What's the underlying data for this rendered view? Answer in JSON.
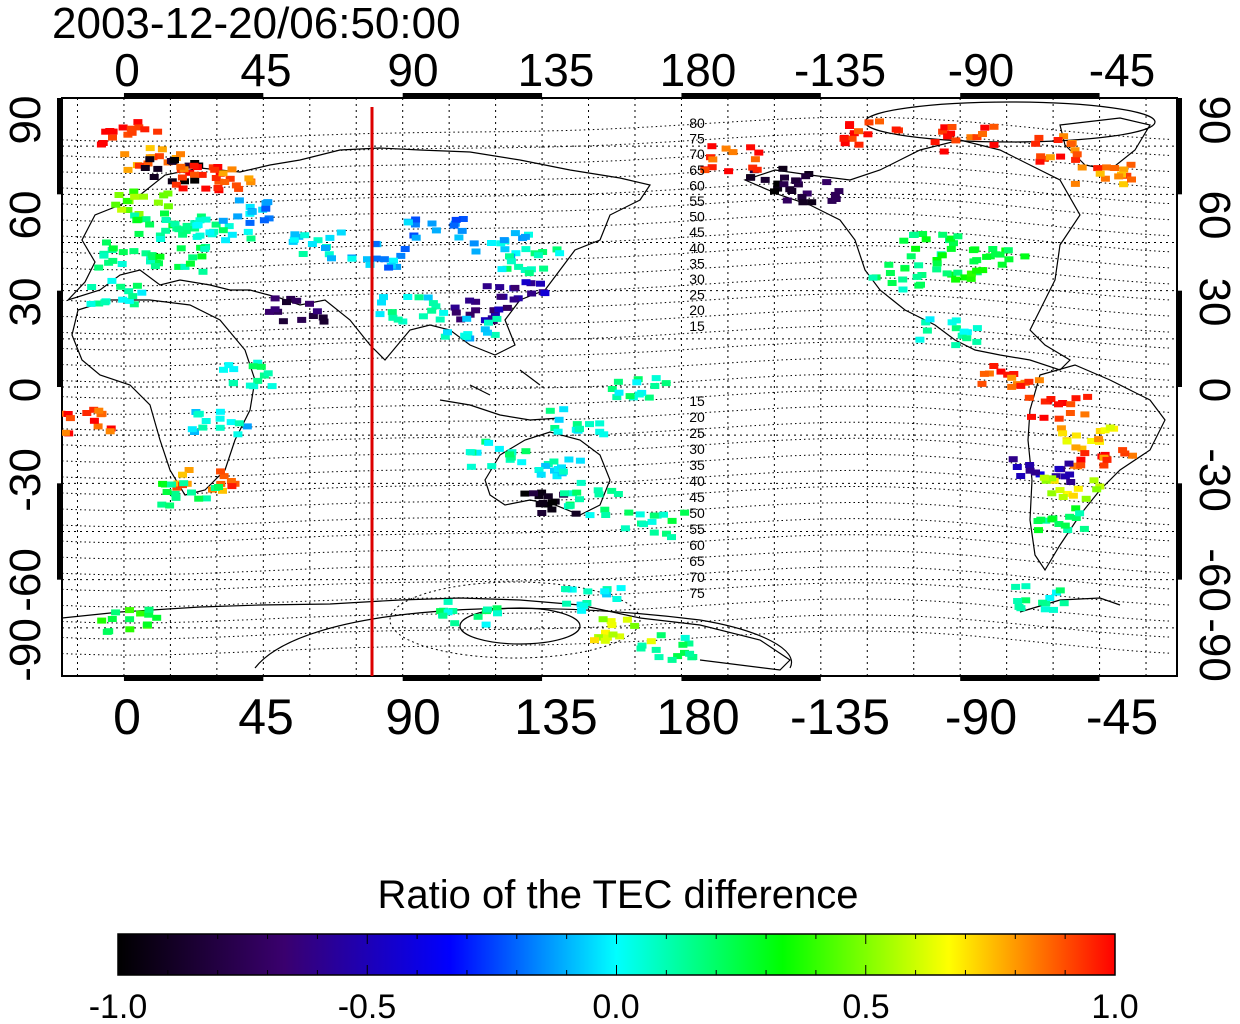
{
  "timestamp": "2003-12-20/06:50:00",
  "lon_ticks": [
    "0",
    "45",
    "90",
    "135",
    "180",
    "-135",
    "-90",
    "-45"
  ],
  "lat_ticks": [
    "90",
    "60",
    "30",
    "0",
    "-30",
    "-60",
    "-90"
  ],
  "contour_labels_north": [
    "80",
    "75",
    "70",
    "65",
    "60",
    "55",
    "50",
    "45",
    "40",
    "35",
    "30",
    "25",
    "20",
    "15"
  ],
  "contour_labels_south": [
    "15",
    "20",
    "25",
    "30",
    "35",
    "40",
    "45",
    "50",
    "55",
    "60",
    "65",
    "70",
    "75"
  ],
  "colorbar": {
    "title": "Ratio of the TEC difference",
    "ticks": [
      "-1.0",
      "-0.5",
      "0.0",
      "0.5",
      "1.0"
    ],
    "range": [
      -1.0,
      1.0
    ],
    "stops": [
      "#000000",
      "#3a006e",
      "#0000ff",
      "#00ffff",
      "#00ff00",
      "#ffff00",
      "#ff0000"
    ]
  },
  "colors": {
    "meridian_line": "#dd0000",
    "coastline": "#000000",
    "grid": "#000000"
  },
  "chart_data": {
    "type": "heatmap",
    "title": "2003-12-20/06:50:00",
    "xlabel": "",
    "ylabel": "",
    "xticks": [
      "0",
      "45",
      "90",
      "135",
      "180",
      "-135",
      "-90",
      "-45"
    ],
    "yticks": [
      "90",
      "60",
      "30",
      "0",
      "-30",
      "-60",
      "-90"
    ],
    "xlim": [
      -20,
      340
    ],
    "ylim": [
      -90,
      90
    ],
    "value_range": [
      -1.0,
      1.0
    ],
    "colorbar_label": "Ratio of the TEC difference",
    "marked_longitude": 77,
    "cells": [
      {
        "lon": 0,
        "lat": 80,
        "v": 1.0
      },
      {
        "lon": 8,
        "lat": 72,
        "v": 0.85
      },
      {
        "lon": 15,
        "lat": 68,
        "v": -0.95
      },
      {
        "lon": 25,
        "lat": 66,
        "v": 0.95
      },
      {
        "lon": 30,
        "lat": 66,
        "v": 0.9
      },
      {
        "lon": 5,
        "lat": 58,
        "v": 0.5
      },
      {
        "lon": 10,
        "lat": 52,
        "v": 0.2
      },
      {
        "lon": 20,
        "lat": 48,
        "v": 0.15
      },
      {
        "lon": 30,
        "lat": 50,
        "v": 0.1
      },
      {
        "lon": 40,
        "lat": 55,
        "v": -0.1
      },
      {
        "lon": 0,
        "lat": 42,
        "v": 0.15
      },
      {
        "lon": 15,
        "lat": 40,
        "v": 0.2
      },
      {
        "lon": 60,
        "lat": 45,
        "v": 0.0
      },
      {
        "lon": 80,
        "lat": 42,
        "v": -0.1
      },
      {
        "lon": 100,
        "lat": 50,
        "v": -0.15
      },
      {
        "lon": 120,
        "lat": 45,
        "v": -0.05
      },
      {
        "lon": 130,
        "lat": 40,
        "v": 0.1
      },
      {
        "lon": 125,
        "lat": 30,
        "v": -0.55
      },
      {
        "lon": 115,
        "lat": 25,
        "v": -0.6
      },
      {
        "lon": 110,
        "lat": 20,
        "v": 0.0
      },
      {
        "lon": 90,
        "lat": 25,
        "v": 0.05
      },
      {
        "lon": 55,
        "lat": 25,
        "v": -0.75
      },
      {
        "lon": -5,
        "lat": 30,
        "v": 0.1
      },
      {
        "lon": 40,
        "lat": 5,
        "v": 0.1
      },
      {
        "lon": 30,
        "lat": -10,
        "v": 0.0
      },
      {
        "lon": 25,
        "lat": -28,
        "v": 0.85
      },
      {
        "lon": 20,
        "lat": -33,
        "v": 0.2
      },
      {
        "lon": -15,
        "lat": -10,
        "v": 0.95
      },
      {
        "lon": 120,
        "lat": -20,
        "v": 0.1
      },
      {
        "lon": 140,
        "lat": -25,
        "v": 0.0
      },
      {
        "lon": 135,
        "lat": -35,
        "v": -0.9
      },
      {
        "lon": 150,
        "lat": -35,
        "v": 0.1
      },
      {
        "lon": 170,
        "lat": -42,
        "v": 0.15
      },
      {
        "lon": 145,
        "lat": -10,
        "v": 0.05
      },
      {
        "lon": 165,
        "lat": 0,
        "v": 0.1
      },
      {
        "lon": -150,
        "lat": 65,
        "v": -0.9
      },
      {
        "lon": -140,
        "lat": 62,
        "v": -0.8
      },
      {
        "lon": -100,
        "lat": 45,
        "v": 0.2
      },
      {
        "lon": -90,
        "lat": 38,
        "v": 0.25
      },
      {
        "lon": -80,
        "lat": 40,
        "v": 0.3
      },
      {
        "lon": -110,
        "lat": 35,
        "v": 0.15
      },
      {
        "lon": -120,
        "lat": 80,
        "v": 1.0
      },
      {
        "lon": -90,
        "lat": 78,
        "v": 0.95
      },
      {
        "lon": -60,
        "lat": 75,
        "v": 0.9
      },
      {
        "lon": -45,
        "lat": 68,
        "v": 0.85
      },
      {
        "lon": -165,
        "lat": 72,
        "v": 0.95
      },
      {
        "lon": -95,
        "lat": 18,
        "v": 0.1
      },
      {
        "lon": -75,
        "lat": 5,
        "v": 0.9
      },
      {
        "lon": -60,
        "lat": -5,
        "v": 0.95
      },
      {
        "lon": -50,
        "lat": -15,
        "v": 0.7
      },
      {
        "lon": -45,
        "lat": -20,
        "v": 0.9
      },
      {
        "lon": -65,
        "lat": -25,
        "v": -0.5
      },
      {
        "lon": -55,
        "lat": -30,
        "v": 0.6
      },
      {
        "lon": -60,
        "lat": -40,
        "v": 0.2
      },
      {
        "lon": -65,
        "lat": -65,
        "v": 0.1
      },
      {
        "lon": 0,
        "lat": -72,
        "v": 0.3
      },
      {
        "lon": 110,
        "lat": -70,
        "v": 0.1
      },
      {
        "lon": 160,
        "lat": -75,
        "v": 0.6
      },
      {
        "lon": 175,
        "lat": -80,
        "v": 0.15
      },
      {
        "lon": 150,
        "lat": -65,
        "v": 0.05
      }
    ]
  }
}
